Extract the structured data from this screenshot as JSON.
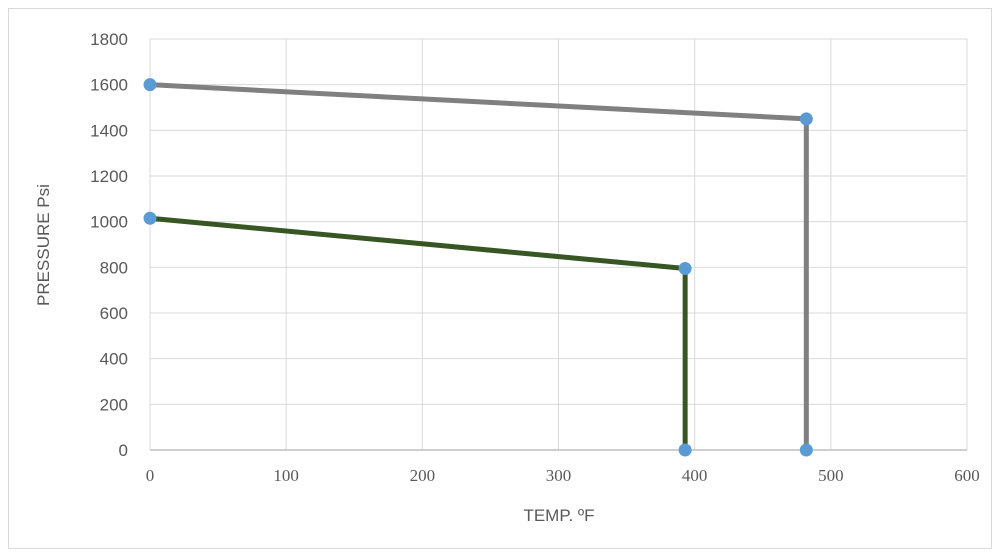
{
  "chart_data": {
    "type": "line",
    "title": "",
    "xlabel": "TEMP. ºF",
    "ylabel": "PRESSURE Psi",
    "xlim": [
      0,
      600
    ],
    "ylim": [
      0,
      1800
    ],
    "xticks": [
      0,
      100,
      200,
      300,
      400,
      500,
      600
    ],
    "yticks": [
      0,
      200,
      400,
      600,
      800,
      1000,
      1200,
      1400,
      1600,
      1800
    ],
    "grid": true,
    "legend": "none",
    "series": [
      {
        "color": "#808080",
        "x": [
          0,
          482,
          482
        ],
        "y": [
          1600,
          1450,
          0
        ]
      },
      {
        "color": "#375623",
        "x": [
          0,
          393,
          393
        ],
        "y": [
          1015,
          795,
          0
        ]
      }
    ],
    "marker_color": "#5b9bd5"
  }
}
